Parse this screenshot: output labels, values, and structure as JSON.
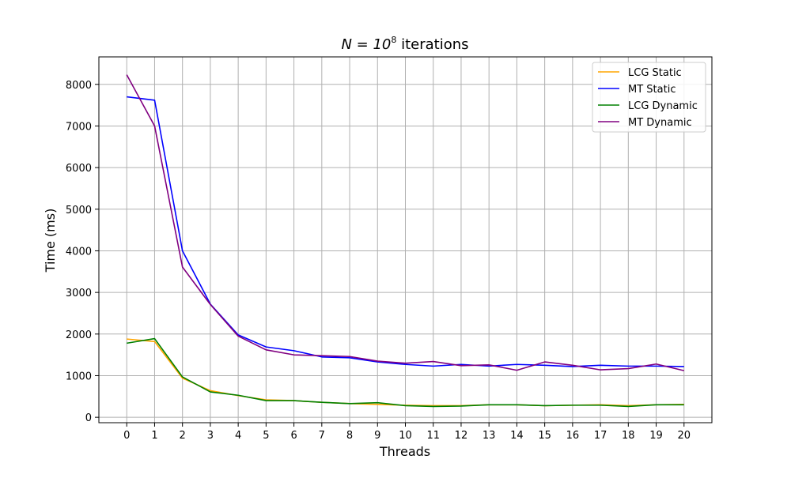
{
  "chart_data": {
    "type": "line",
    "title": {
      "prefix": "N = 10",
      "exponent": "8",
      "suffix": " iterations"
    },
    "xlabel": "Threads",
    "ylabel": "Time (ms)",
    "x": [
      0,
      1,
      2,
      3,
      4,
      5,
      6,
      7,
      8,
      9,
      10,
      11,
      12,
      13,
      14,
      15,
      16,
      17,
      18,
      19,
      20
    ],
    "x_tick_labels": [
      "0",
      "1",
      "2",
      "3",
      "4",
      "5",
      "6",
      "7",
      "8",
      "9",
      "10",
      "11",
      "12",
      "13",
      "14",
      "15",
      "16",
      "17",
      "18",
      "19",
      "20"
    ],
    "y_ticks": [
      0,
      1000,
      2000,
      3000,
      4000,
      5000,
      6000,
      7000,
      8000
    ],
    "y_tick_labels": [
      "0",
      "1000",
      "2000",
      "3000",
      "4000",
      "5000",
      "6000",
      "7000",
      "8000"
    ],
    "xlim": [
      -1,
      21
    ],
    "ylim": [
      -130,
      8660
    ],
    "grid": true,
    "legend_position": "top-right",
    "series": [
      {
        "name": "LCG Static",
        "color": "#ffa500",
        "values": [
          1880,
          1820,
          940,
          640,
          520,
          420,
          400,
          360,
          330,
          310,
          290,
          280,
          280,
          300,
          300,
          280,
          290,
          300,
          280,
          300,
          310
        ]
      },
      {
        "name": "MT Static",
        "color": "#0000ff",
        "values": [
          7700,
          7620,
          4000,
          2720,
          1980,
          1690,
          1600,
          1450,
          1430,
          1330,
          1270,
          1230,
          1270,
          1230,
          1270,
          1250,
          1220,
          1250,
          1230,
          1230,
          1220
        ]
      },
      {
        "name": "LCG Dynamic",
        "color": "#008000",
        "values": [
          1780,
          1890,
          970,
          610,
          530,
          400,
          400,
          360,
          330,
          350,
          280,
          260,
          270,
          300,
          300,
          280,
          290,
          290,
          260,
          300,
          300
        ]
      },
      {
        "name": "MT Dynamic",
        "color": "#800080",
        "values": [
          8230,
          7000,
          3610,
          2710,
          1950,
          1620,
          1500,
          1480,
          1460,
          1350,
          1300,
          1340,
          1240,
          1260,
          1130,
          1330,
          1250,
          1140,
          1170,
          1280,
          1120
        ]
      }
    ]
  }
}
